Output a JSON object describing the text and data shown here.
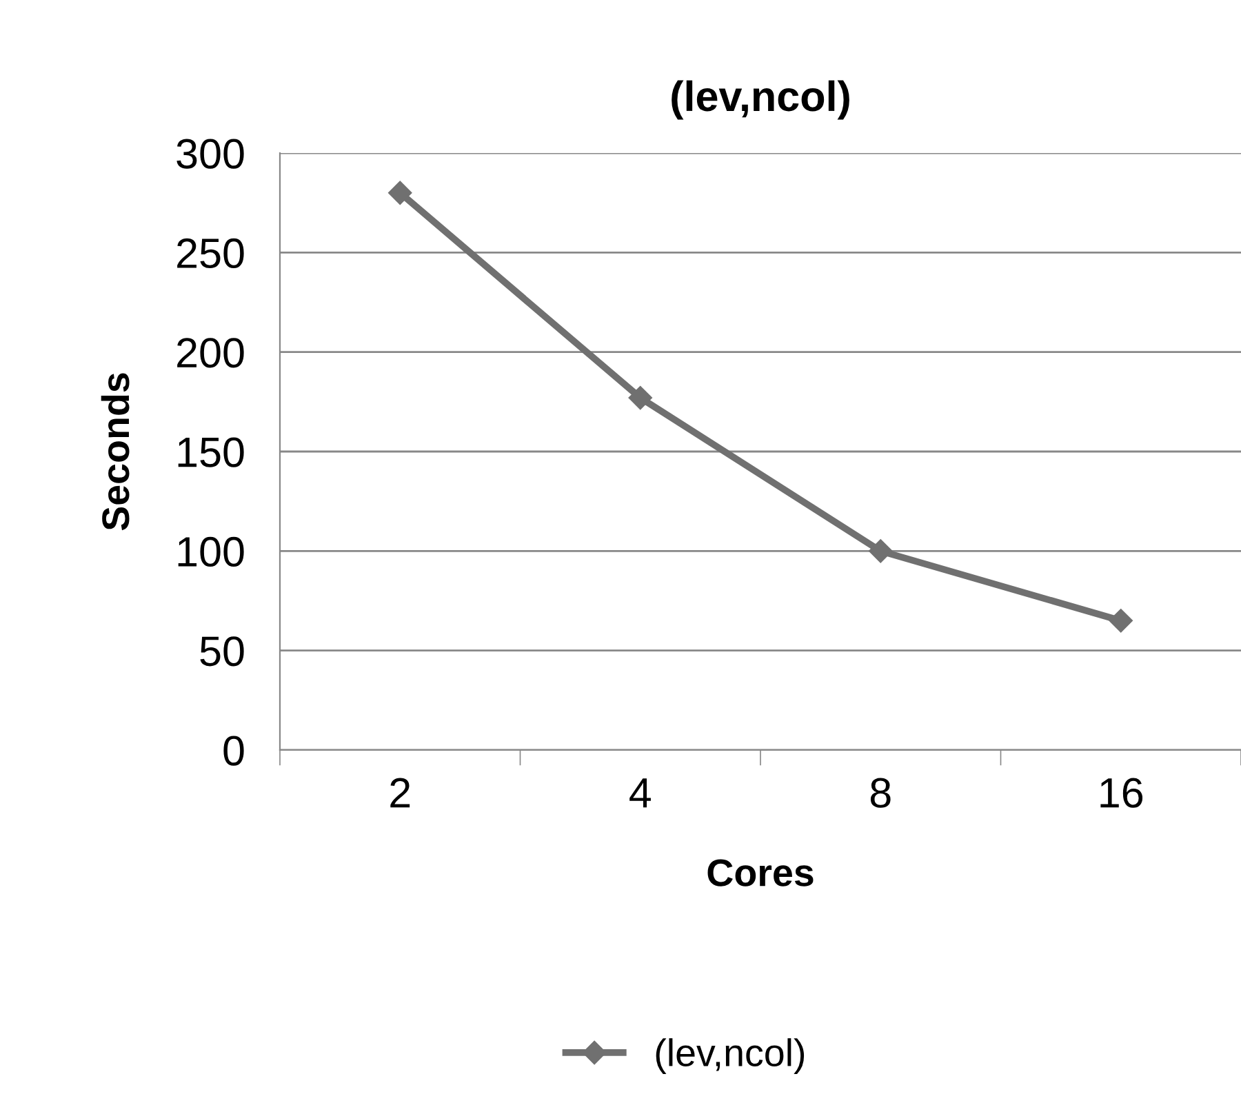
{
  "chart_data": {
    "type": "line",
    "title": "(lev,ncol)",
    "xlabel": "Cores",
    "ylabel": "Seconds",
    "categories": [
      "2",
      "4",
      "8",
      "16"
    ],
    "series": [
      {
        "name": "(lev,ncol)",
        "color": "#707070",
        "values": [
          280,
          177,
          100,
          65
        ]
      }
    ],
    "ylim": [
      0,
      300
    ],
    "yticks": [
      0,
      50,
      100,
      150,
      200,
      250,
      300
    ],
    "grid": "y",
    "legend": "bottom",
    "marker": "diamond",
    "line_style": "solid"
  }
}
